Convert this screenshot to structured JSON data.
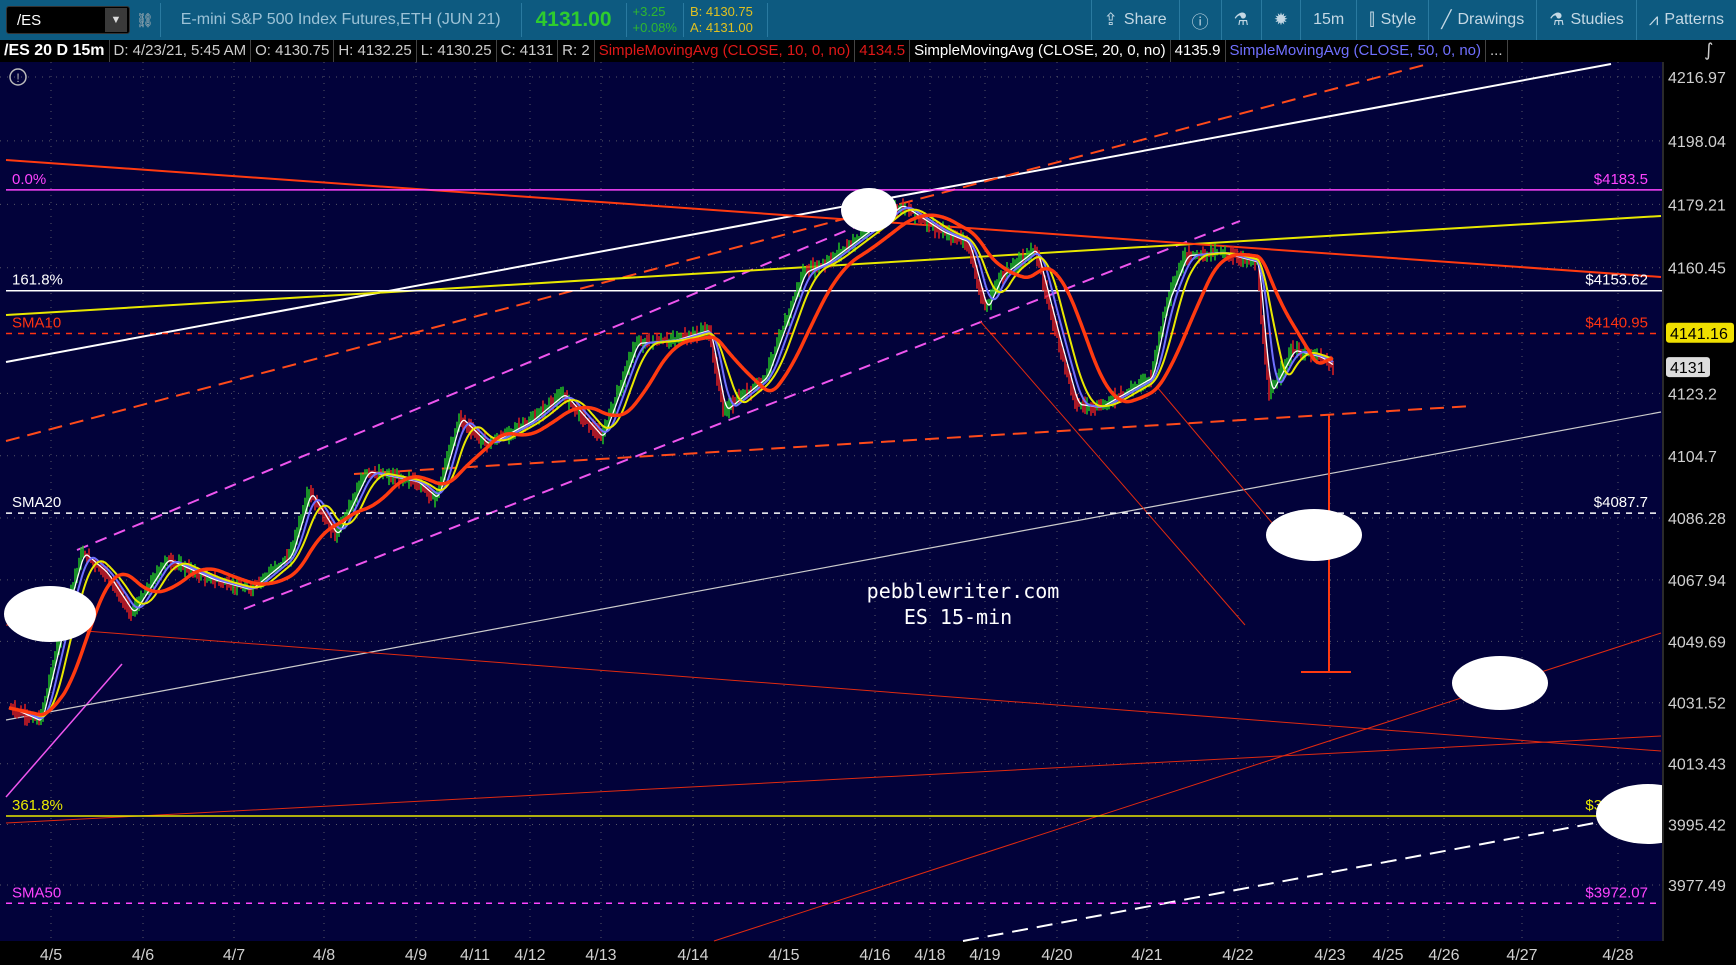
{
  "toolbar": {
    "symbol": "/ES",
    "instrument_title": "E-mini S&P 500 Index Futures,ETH (JUN 21)",
    "last_price": "4131.00",
    "change": "+3.25",
    "change_pct": "+0.08%",
    "bid": "B: 4130.75",
    "ask": "A: 4131.00",
    "buttons": [
      {
        "label": "Share",
        "icon": "share-icon"
      },
      {
        "label": "",
        "icon": "info-icon"
      },
      {
        "label": "",
        "icon": "flask-icon"
      },
      {
        "label": "",
        "icon": "gear-icon"
      },
      {
        "label": "15m",
        "icon": ""
      },
      {
        "label": "Style",
        "icon": "candlestick-icon"
      },
      {
        "label": "Drawings",
        "icon": "pencil-line-icon"
      },
      {
        "label": "Studies",
        "icon": "flask-icon"
      },
      {
        "label": "Patterns",
        "icon": "patterns-icon"
      }
    ]
  },
  "legend": {
    "symbol_period": "/ES 20 D 15m",
    "date": "D: 4/23/21, 5:45 AM",
    "open": "O: 4130.75",
    "high": "H: 4132.25",
    "low": "L: 4130.25",
    "close": "C: 4131",
    "range": "R: 2",
    "sma10": "SimpleMovingAvg (CLOSE, 10, 0, no)",
    "sma10_value": "4134.5",
    "sma20": "SimpleMovingAvg (CLOSE, 20, 0, no)",
    "sma20_value": "4135.9",
    "sma50": "SimpleMovingAvg (CLOSE, 50, 0, no)",
    "more": "..."
  },
  "watermark": {
    "line1": "pebblewriter.com",
    "line2": "ES 15-min"
  },
  "colors": {
    "background": "#02023a",
    "toolbar": "#0d5a80",
    "sma10": "#ff2a2a",
    "sma20": "#ffffff",
    "sma50": "#7777ff",
    "up": "#22c022",
    "down": "#e02020"
  },
  "chart_data": {
    "type": "line",
    "title": "",
    "y_ticks": [
      4216.97,
      4198.04,
      4179.21,
      4160.45,
      4123.2,
      4104.7,
      4086.28,
      4067.94,
      4049.69,
      4031.52,
      4013.43,
      3995.42,
      3977.49
    ],
    "ylim": [
      3960,
      4220
    ],
    "x_ticks": [
      "4/5",
      "4/6",
      "4/7",
      "4/8",
      "4/9",
      "4/11",
      "4/12",
      "4/13",
      "4/14",
      "4/15",
      "4/16",
      "4/18",
      "4/19",
      "4/20",
      "4/21",
      "4/22",
      "4/23",
      "4/25",
      "4/26",
      "4/27",
      "4/28"
    ],
    "grid": true,
    "current_price_badge": "4131",
    "sma_badge": "4141.16",
    "levels": [
      {
        "left_label": "0.0%",
        "right_label": "$4183.5",
        "price": 4183.5,
        "color": "#ff44ff",
        "style": "solid"
      },
      {
        "left_label": "161.8%",
        "right_label": "$4153.62",
        "price": 4153.62,
        "color": "#ffffff",
        "style": "solid"
      },
      {
        "left_label": "SMA10",
        "right_label": "$4140.95",
        "price": 4140.95,
        "color": "#ff3311",
        "style": "dashed"
      },
      {
        "left_label": "SMA20",
        "right_label": "$4087.7",
        "price": 4087.7,
        "color": "#ffffff",
        "style": "dashed"
      },
      {
        "left_label": "361.8%",
        "right_label": "$3997.93",
        "price": 3997.93,
        "color": "#e8e800",
        "style": "solid"
      },
      {
        "left_label": "SMA50",
        "right_label": "$3972.07",
        "price": 3972.07,
        "color": "#ff44ff",
        "style": "dashed"
      }
    ],
    "price": [
      [
        "4/5 01:00",
        4030
      ],
      [
        "4/5 09:00",
        4026
      ],
      [
        "4/5 16:00",
        4060
      ],
      [
        "4/5 20:00",
        4076
      ],
      [
        "4/6 02:00",
        4070
      ],
      [
        "4/6 09:00",
        4058
      ],
      [
        "4/6 18:00",
        4074
      ],
      [
        "4/7 06:00",
        4068
      ],
      [
        "4/7 16:00",
        4065
      ],
      [
        "4/8 03:00",
        4075
      ],
      [
        "4/8 08:00",
        4094
      ],
      [
        "4/8 15:00",
        4081
      ],
      [
        "4/8 23:00",
        4100
      ],
      [
        "4/9 12:00",
        4097
      ],
      [
        "4/9 20:00",
        4092
      ],
      [
        "4/11 05:00",
        4116
      ],
      [
        "4/11 17:00",
        4108
      ],
      [
        "4/12 12:00",
        4115
      ],
      [
        "4/12 23:00",
        4123
      ],
      [
        "4/13 12:00",
        4110
      ],
      [
        "4/13 21:00",
        4138
      ],
      [
        "4/14 07:00",
        4139
      ],
      [
        "4/14 16:00",
        4142
      ],
      [
        "4/14 20:00",
        4118
      ],
      [
        "4/15 07:00",
        4128
      ],
      [
        "4/15 17:00",
        4159
      ],
      [
        "4/15 23:00",
        4162
      ],
      [
        "4/16 14:00",
        4174
      ],
      [
        "4/16 23:00",
        4179
      ],
      [
        "4/18 17:00",
        4171
      ],
      [
        "4/19 06:00",
        4168
      ],
      [
        "4/19 12:00",
        4148
      ],
      [
        "4/19 17:00",
        4158
      ],
      [
        "4/20 06:00",
        4166
      ],
      [
        "4/20 12:00",
        4140
      ],
      [
        "4/20 17:00",
        4120
      ],
      [
        "4/20 23:00",
        4119
      ],
      [
        "4/21 13:00",
        4128
      ],
      [
        "4/21 17:00",
        4150
      ],
      [
        "4/21 22:00",
        4164
      ],
      [
        "4/22 07:00",
        4165
      ],
      [
        "4/22 17:00",
        4162
      ],
      [
        "4/22 18:00",
        4145
      ],
      [
        "4/22 20:00",
        4123
      ],
      [
        "4/23 02:00",
        4136
      ],
      [
        "4/23 09:00",
        4134
      ],
      [
        "4/23 13:00",
        4131
      ]
    ]
  }
}
